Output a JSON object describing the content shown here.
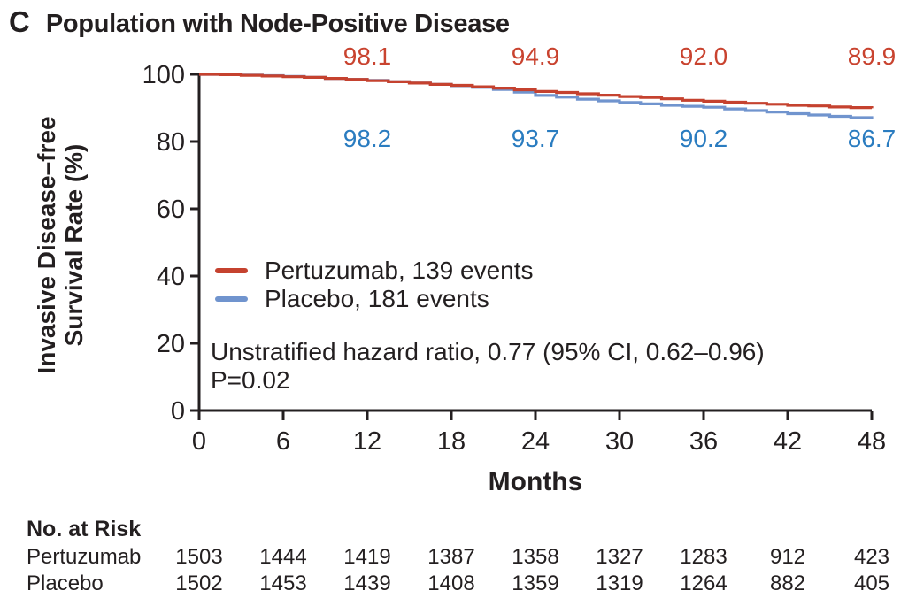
{
  "figure": {
    "panel_letter": "C",
    "title": "Population with Node-Positive Disease"
  },
  "chart_data": {
    "type": "line",
    "subtype": "kaplan-meier-step",
    "title": "Population with Node-Positive Disease",
    "xlabel": "Months",
    "ylabel_lines": [
      "Invasive Disease–free",
      "Survival Rate (%)"
    ],
    "xlim": [
      0,
      48
    ],
    "ylim": [
      0,
      100
    ],
    "xticks": [
      0,
      6,
      12,
      18,
      24,
      30,
      36,
      42,
      48
    ],
    "yticks": [
      0,
      20,
      40,
      60,
      80,
      100
    ],
    "grid": false,
    "axis_color": "#231f20",
    "series": [
      {
        "name": "Pertuzumab",
        "events": 139,
        "color": "#c5422f",
        "label_color": "#c9432f",
        "callout_months": [
          12,
          24,
          36,
          48
        ],
        "callout_labels": [
          "98.1",
          "94.9",
          "92.0",
          "89.9"
        ],
        "points": [
          [
            0,
            100
          ],
          [
            1.5,
            99.9
          ],
          [
            3,
            99.7
          ],
          [
            4.5,
            99.5
          ],
          [
            6,
            99.3
          ],
          [
            7.5,
            99.1
          ],
          [
            9,
            98.8
          ],
          [
            10.5,
            98.5
          ],
          [
            12,
            98.1
          ],
          [
            13.5,
            97.8
          ],
          [
            15,
            97.4
          ],
          [
            16.5,
            97.0
          ],
          [
            18,
            96.7
          ],
          [
            19.5,
            96.3
          ],
          [
            21,
            95.9
          ],
          [
            22.5,
            95.4
          ],
          [
            24,
            94.9
          ],
          [
            25.5,
            94.6
          ],
          [
            27,
            94.2
          ],
          [
            28.5,
            93.8
          ],
          [
            30,
            93.4
          ],
          [
            31.5,
            93.1
          ],
          [
            33,
            92.7
          ],
          [
            34.5,
            92.3
          ],
          [
            36,
            92.0
          ],
          [
            37.5,
            91.7
          ],
          [
            39,
            91.4
          ],
          [
            40.5,
            91.1
          ],
          [
            42,
            90.8
          ],
          [
            43.5,
            90.6
          ],
          [
            45,
            90.3
          ],
          [
            46.5,
            90.1
          ],
          [
            48,
            89.9
          ]
        ]
      },
      {
        "name": "Placebo",
        "events": 181,
        "color": "#7094ce",
        "label_color": "#2a7cc0",
        "callout_months": [
          12,
          24,
          36,
          48
        ],
        "callout_labels": [
          "98.2",
          "93.7",
          "90.2",
          "86.7"
        ],
        "points": [
          [
            0,
            100
          ],
          [
            1.5,
            99.9
          ],
          [
            3,
            99.8
          ],
          [
            4.5,
            99.6
          ],
          [
            6,
            99.4
          ],
          [
            7.5,
            99.1
          ],
          [
            9,
            98.8
          ],
          [
            10.5,
            98.5
          ],
          [
            12,
            98.2
          ],
          [
            13.5,
            97.8
          ],
          [
            15,
            97.4
          ],
          [
            16.5,
            97.0
          ],
          [
            18,
            96.6
          ],
          [
            19.5,
            96.1
          ],
          [
            21,
            95.5
          ],
          [
            22.5,
            94.7
          ],
          [
            24,
            93.7
          ],
          [
            25.5,
            93.2
          ],
          [
            27,
            92.6
          ],
          [
            28.5,
            92.1
          ],
          [
            30,
            91.6
          ],
          [
            31.5,
            91.2
          ],
          [
            33,
            90.8
          ],
          [
            34.5,
            90.5
          ],
          [
            36,
            90.2
          ],
          [
            37.5,
            89.7
          ],
          [
            39,
            89.2
          ],
          [
            40.5,
            88.8
          ],
          [
            42,
            88.3
          ],
          [
            43.5,
            87.9
          ],
          [
            45,
            87.5
          ],
          [
            46.5,
            87.1
          ],
          [
            48,
            86.7
          ]
        ]
      }
    ],
    "annotation_lines": [
      "Unstratified hazard ratio, 0.77 (95% CI, 0.62–0.96)",
      "P=0.02"
    ]
  },
  "legend": {
    "items": [
      {
        "label": "Pertuzumab, 139 events",
        "color": "#c5422f"
      },
      {
        "label": "Placebo, 181 events",
        "color": "#7094ce"
      }
    ]
  },
  "risk_table": {
    "header": "No. at Risk",
    "months": [
      0,
      6,
      12,
      18,
      24,
      30,
      36,
      42,
      48
    ],
    "rows": [
      {
        "label": "Pertuzumab",
        "counts": [
          "1503",
          "1444",
          "1419",
          "1387",
          "1358",
          "1327",
          "1283",
          "912",
          "423"
        ]
      },
      {
        "label": "Placebo",
        "counts": [
          "1502",
          "1453",
          "1439",
          "1408",
          "1359",
          "1319",
          "1264",
          "882",
          "405"
        ]
      }
    ]
  }
}
